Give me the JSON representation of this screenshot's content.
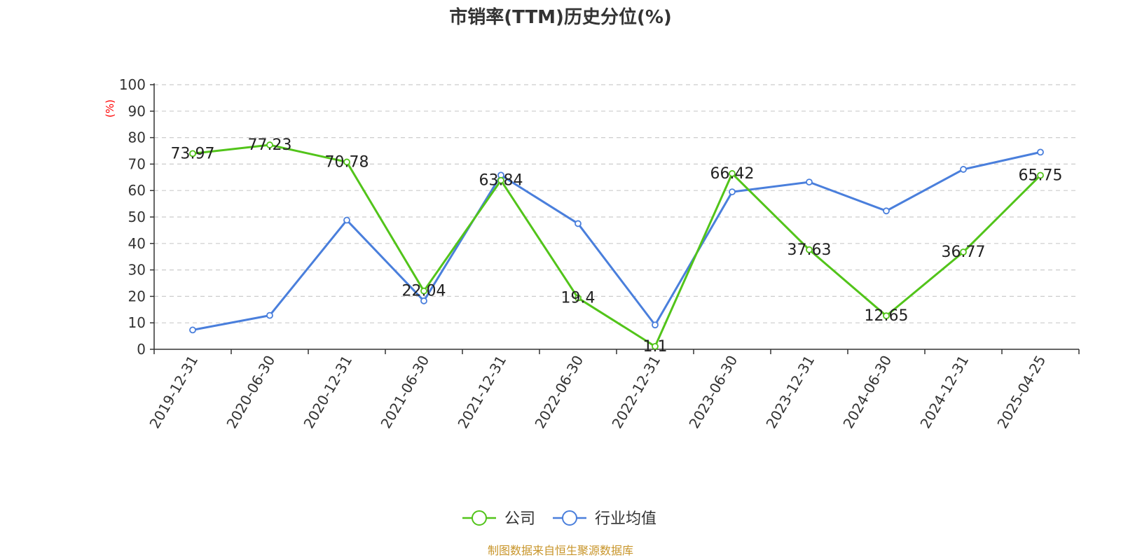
{
  "chart_data": {
    "type": "line",
    "title": "市销率(TTM)历史分位(%)",
    "ylabel": "(%)",
    "xlabel": "",
    "categories": [
      "2019-12-31",
      "2020-06-30",
      "2020-12-31",
      "2021-06-30",
      "2021-12-31",
      "2022-06-30",
      "2022-12-31",
      "2023-06-30",
      "2023-12-31",
      "2024-06-30",
      "2024-12-31",
      "2025-04-25"
    ],
    "ylim": [
      0,
      100
    ],
    "yticks": [
      0,
      10,
      20,
      30,
      40,
      50,
      60,
      70,
      80,
      90,
      100
    ],
    "grid": true,
    "legend_position": "bottom-center",
    "series": [
      {
        "name": "公司",
        "color": "#52c41a",
        "values": [
          73.97,
          77.23,
          70.78,
          22.04,
          63.84,
          19.4,
          1.1,
          66.42,
          37.63,
          12.65,
          36.77,
          65.75
        ],
        "labels": [
          "73.97",
          "77.23",
          "70.78",
          "22.04",
          "63.84",
          "19.4",
          "1.1",
          "66.42",
          "37.63",
          "12.65",
          "36.77",
          "65.75"
        ]
      },
      {
        "name": "行业均值",
        "color": "#4a7fdc",
        "values": [
          7.3,
          12.8,
          48.8,
          18.3,
          65.8,
          47.5,
          9.2,
          59.5,
          63.2,
          52.3,
          68.0,
          74.5
        ]
      }
    ]
  },
  "source_note": "制图数据来自恒生聚源数据库",
  "colors": {
    "title": "#333333",
    "axis": "#333333",
    "grid": "#cccccc",
    "ylabel": "#ff0000",
    "source": "#c8952a"
  }
}
